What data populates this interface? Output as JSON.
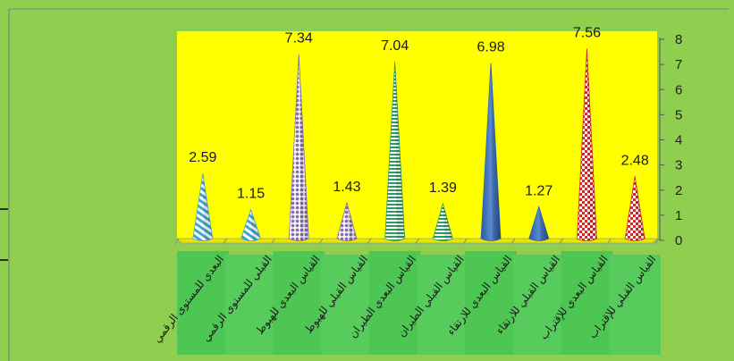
{
  "chart_data": {
    "type": "bar",
    "bar_shape": "cone",
    "categories": [
      "البعدي للمستوى الرقمي",
      "القبلي للمستوى الرقمي",
      "القياس البعدي للهبوط",
      "القياس القبلي للهبوط",
      "القياس البعدي الطيران",
      "القياس القبلي الطيران",
      "القياس البعدي للارتقاء",
      "القياس القبلي للارتقاء",
      "القياس البعدي للإقتراب",
      "القياس القبلي للإقتراب"
    ],
    "values": [
      2.59,
      1.15,
      7.34,
      1.43,
      7.04,
      1.39,
      6.98,
      1.27,
      7.56,
      2.48
    ],
    "value_labels": [
      "2.59",
      "1.15",
      "7.34",
      "1.43",
      "7.04",
      "1.39",
      "6.98",
      "1.27",
      "7.56",
      "2.48"
    ],
    "ylim": [
      0,
      8
    ],
    "yticks": [
      "0",
      "1",
      "2",
      "3",
      "4",
      "5",
      "6",
      "7",
      "8"
    ],
    "y_axis_side": "right",
    "title": "",
    "xlabel": "",
    "ylabel": "",
    "legend": "none",
    "grid": false,
    "colors": {
      "outer_background": "#8fce4f",
      "plot_background": "#ffff00",
      "category_label_boxes": "#4dc653",
      "cones": [
        "#4fa9cf",
        "#4fa9cf",
        "#8b6fb2",
        "#8b6fb2",
        "#2e9b63",
        "#2e9b63",
        "#2f62b0",
        "#2f62b0",
        "#d42a2a",
        "#d42a2a"
      ]
    }
  }
}
